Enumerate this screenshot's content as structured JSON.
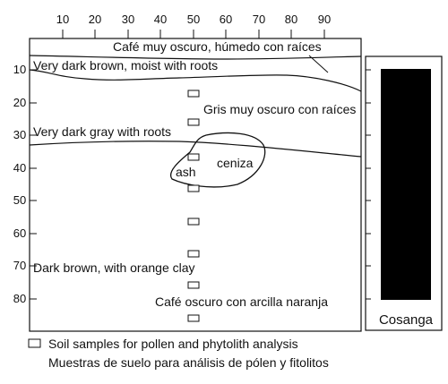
{
  "top_axis": {
    "ticks": [
      "10",
      "20",
      "30",
      "40",
      "50",
      "60",
      "70",
      "80",
      "90"
    ]
  },
  "left_axis": {
    "ticks": [
      "10",
      "20",
      "30",
      "40",
      "50",
      "60",
      "70",
      "80"
    ]
  },
  "layers": [
    {
      "en": "Very dark brown, moist with roots",
      "es": "Café muy oscuro, húmedo con raíces"
    },
    {
      "en": "Very dark gray with roots",
      "es": "Gris muy oscuro con raíces"
    },
    {
      "en": "Dark brown, with orange clay",
      "es": "Café oscuro con arcilla naranja"
    }
  ],
  "ash_lens": {
    "en": "ash",
    "es": "ceniza"
  },
  "column_label": "Cosanga",
  "legend": {
    "line_en": "Soil samples for pollen and phytolith analysis",
    "line_es": "Muestras de suelo para análisis de pólen y fitolitos"
  },
  "sample_depths_cm": [
    17,
    25,
    35,
    45,
    55,
    65,
    75,
    85
  ]
}
